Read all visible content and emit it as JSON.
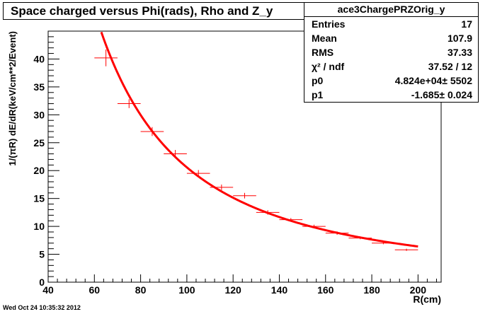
{
  "header": {
    "title": "Space charged versus Phi(rads), Rho and Z_y"
  },
  "stats": {
    "name": "ace3ChargePRZOrig_y",
    "rows": [
      {
        "label": "Entries",
        "value": "17"
      },
      {
        "label": "Mean",
        "value": "107.9"
      },
      {
        "label": "RMS",
        "value": "37.33"
      },
      {
        "label": "χ² / ndf",
        "value": "37.52 / 12"
      },
      {
        "label": "p0",
        "value": "4.824e+04± 5502"
      },
      {
        "label": "p1",
        "value": "-1.685± 0.024"
      }
    ]
  },
  "footer": {
    "timestamp": "Wed Oct 24 10:35:32 2012"
  },
  "colors": {
    "data": "#ff0000",
    "axis": "#000000",
    "background": "#ffffff"
  },
  "chart_data": {
    "type": "scatter",
    "title": "Space charged versus Phi(rads), Rho and Z_y",
    "xlabel": "R(cm)",
    "ylabel": "1/(πR) dE/dR(keV/cm**2/Event)",
    "xlim": [
      40,
      210
    ],
    "ylim": [
      0,
      45
    ],
    "x_ticks": [
      40,
      60,
      80,
      100,
      120,
      140,
      160,
      180,
      200
    ],
    "y_ticks": [
      0,
      5,
      10,
      15,
      20,
      25,
      30,
      35,
      40
    ],
    "grid": false,
    "series": [
      {
        "points": [
          {
            "x": 65,
            "y": 40.2,
            "xerr": 5,
            "yerr": 1.5
          },
          {
            "x": 75,
            "y": 32.0,
            "xerr": 5,
            "yerr": 0.8
          },
          {
            "x": 85,
            "y": 27.0,
            "xerr": 5,
            "yerr": 0.8
          },
          {
            "x": 95,
            "y": 23.0,
            "xerr": 5,
            "yerr": 0.7
          },
          {
            "x": 105,
            "y": 19.5,
            "xerr": 5,
            "yerr": 0.6
          },
          {
            "x": 115,
            "y": 17.0,
            "xerr": 5,
            "yerr": 0.5
          },
          {
            "x": 125,
            "y": 15.5,
            "xerr": 5,
            "yerr": 0.5
          },
          {
            "x": 135,
            "y": 12.5,
            "xerr": 5,
            "yerr": 0.4
          },
          {
            "x": 145,
            "y": 11.2,
            "xerr": 5,
            "yerr": 0.3
          },
          {
            "x": 155,
            "y": 10.0,
            "xerr": 5,
            "yerr": 0.3
          },
          {
            "x": 165,
            "y": 8.8,
            "xerr": 5,
            "yerr": 0.3
          },
          {
            "x": 175,
            "y": 7.9,
            "xerr": 5,
            "yerr": 0.2
          },
          {
            "x": 185,
            "y": 7.0,
            "xerr": 5,
            "yerr": 0.2
          },
          {
            "x": 195,
            "y": 5.8,
            "xerr": 5,
            "yerr": 0.2
          }
        ]
      }
    ],
    "fit": {
      "function": "p0*x^p1",
      "p0": 48240,
      "p1": -1.685,
      "x_range": [
        60,
        200
      ]
    }
  }
}
